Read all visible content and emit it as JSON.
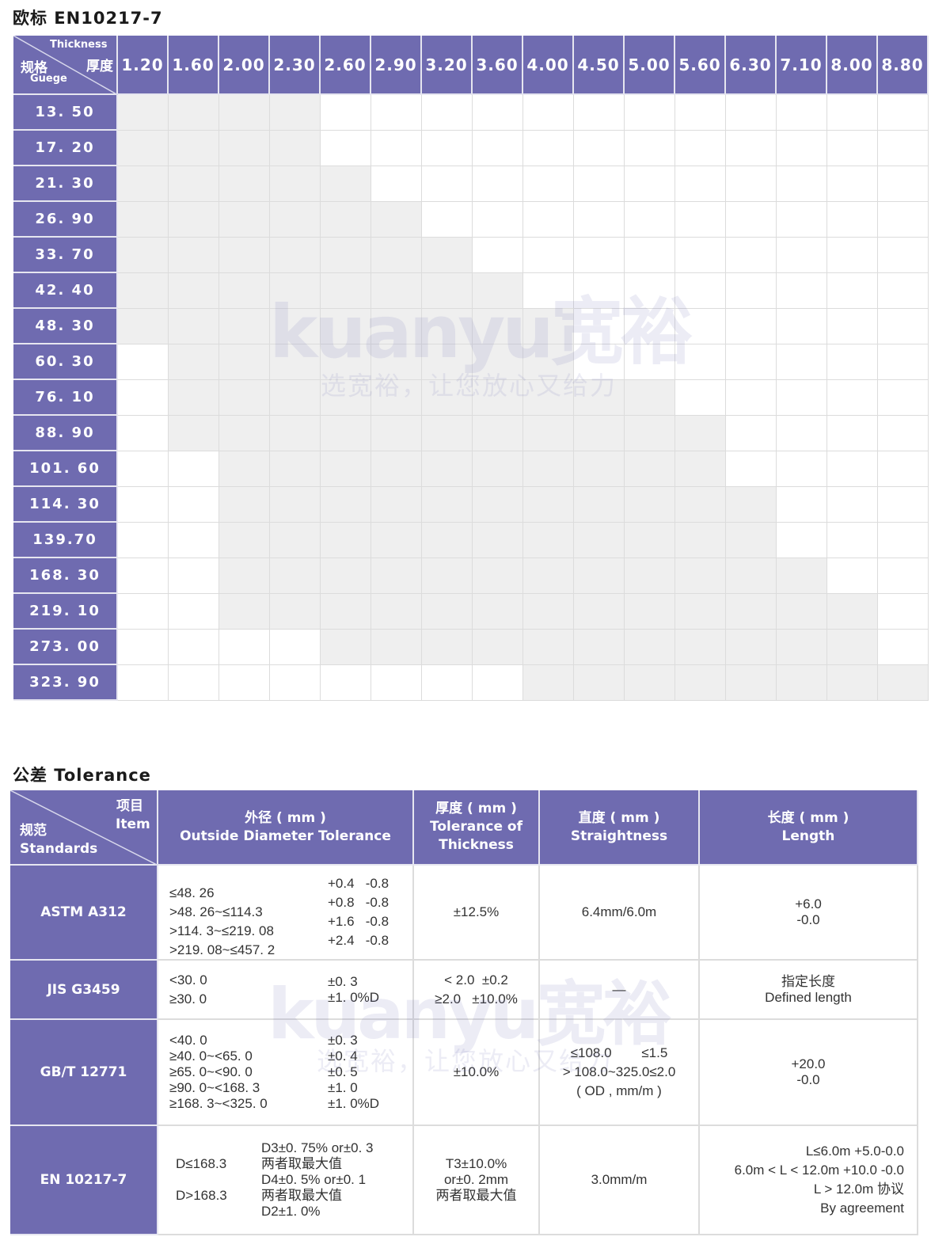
{
  "section1": {
    "title": "欧标 EN10217-7",
    "corner": {
      "thickness_en": "Thickness",
      "thickness_cn": "厚度",
      "gauge_cn": "规格",
      "gauge_en": "Guege"
    },
    "thicknesses": [
      "1.20",
      "1.60",
      "2.00",
      "2.30",
      "2.60",
      "2.90",
      "3.20",
      "3.60",
      "4.00",
      "4.50",
      "5.00",
      "5.60",
      "6.30",
      "7.10",
      "8.00",
      "8.80"
    ],
    "rows": [
      {
        "gauge": "13. 50",
        "available": [
          0,
          3
        ]
      },
      {
        "gauge": "17. 20",
        "available": [
          0,
          3
        ]
      },
      {
        "gauge": "21. 30",
        "available": [
          0,
          4
        ]
      },
      {
        "gauge": "26. 90",
        "available": [
          0,
          5
        ]
      },
      {
        "gauge": "33. 70",
        "available": [
          0,
          6
        ]
      },
      {
        "gauge": "42. 40",
        "available": [
          0,
          7
        ]
      },
      {
        "gauge": "48. 30",
        "available": [
          0,
          8
        ]
      },
      {
        "gauge": "60. 30",
        "available": [
          1,
          8
        ]
      },
      {
        "gauge": "76. 10",
        "available": [
          1,
          10
        ]
      },
      {
        "gauge": "88. 90",
        "available": [
          1,
          11
        ]
      },
      {
        "gauge": "101. 60",
        "available": [
          2,
          11
        ]
      },
      {
        "gauge": "114. 30",
        "available": [
          2,
          12
        ]
      },
      {
        "gauge": "139.70",
        "available": [
          2,
          12
        ]
      },
      {
        "gauge": "168. 30",
        "available": [
          2,
          13
        ]
      },
      {
        "gauge": "219. 10",
        "available": [
          2,
          14
        ]
      },
      {
        "gauge": "273. 00",
        "available": [
          4,
          14
        ]
      },
      {
        "gauge": "323. 90",
        "available": [
          8,
          15
        ]
      }
    ]
  },
  "section2": {
    "title": "公差 Tolerance",
    "corner": {
      "item_cn": "项目",
      "item_en": "Item",
      "std_cn": "规范",
      "std_en": "Standards"
    },
    "headers": [
      "外径 ( mm )\nOutside Diameter Tolerance",
      "厚度 ( mm )\nTolerance of\nThickness",
      "直度 ( mm )\nStraightness",
      "长度 ( mm )\nLength"
    ],
    "rows": [
      {
        "standard": "ASTM A312",
        "od_ranges": "\n≤48. 26\n>48. 26~≤114.3\n>114. 3~≤219. 08\n>219. 08~≤457. 2",
        "od_tol": "+0.4   -0.8\n+0.8   -0.8\n+1.6   -0.8\n+2.4   -0.8",
        "thickness": "±12.5%",
        "straightness": "6.4mm/6.0m",
        "length": "+6.0\n-0.0"
      },
      {
        "standard": "JIS G3459",
        "od_ranges": "<30. 0\n≥30. 0",
        "od_tol": "±0. 3\n±1. 0%D",
        "thickness": "< 2.0  ±0.2\n≥2.0   ±10.0%",
        "straightness": "—",
        "length": "指定长度\nDefined length"
      },
      {
        "standard": "GB/T 12771",
        "od_ranges": "<40. 0\n≥40. 0~<65. 0\n≥65. 0~<90. 0\n≥90. 0~<168. 3\n≥168. 3~<325. 0",
        "od_tol": "±0. 3\n±0. 4\n±0. 5\n±1. 0\n±1. 0%D",
        "thickness": "±10.0%",
        "straightness": "≤108.0        ≤1.5\n> 108.0~325.0≤2.0\n( OD , mm/m )",
        "length": "+20.0\n-0.0"
      },
      {
        "standard": "EN  10217-7",
        "od_ranges": "D≤168.3\n\nD>168.3",
        "od_tol": "D3±0. 75% or±0. 3\n两者取最大值\nD4±0. 5% or±0. 1\n两者取最大值\nD2±1. 0%",
        "thickness": "T3±10.0%\nor±0. 2mm\n两者取最大值",
        "straightness": "3.0mm/m",
        "length": "L≤6.0m +5.0-0.0\n6.0m < L < 12.0m +10.0 -0.0\nL > 12.0m 协议\nBy agreement"
      }
    ]
  },
  "watermark": {
    "logo": "kuanyu宽裕",
    "slogan": "选宽裕，让您放心又给力"
  },
  "colors": {
    "header": "#6f6bb0",
    "available": "#efefef",
    "grid": "#dcdcdc"
  }
}
